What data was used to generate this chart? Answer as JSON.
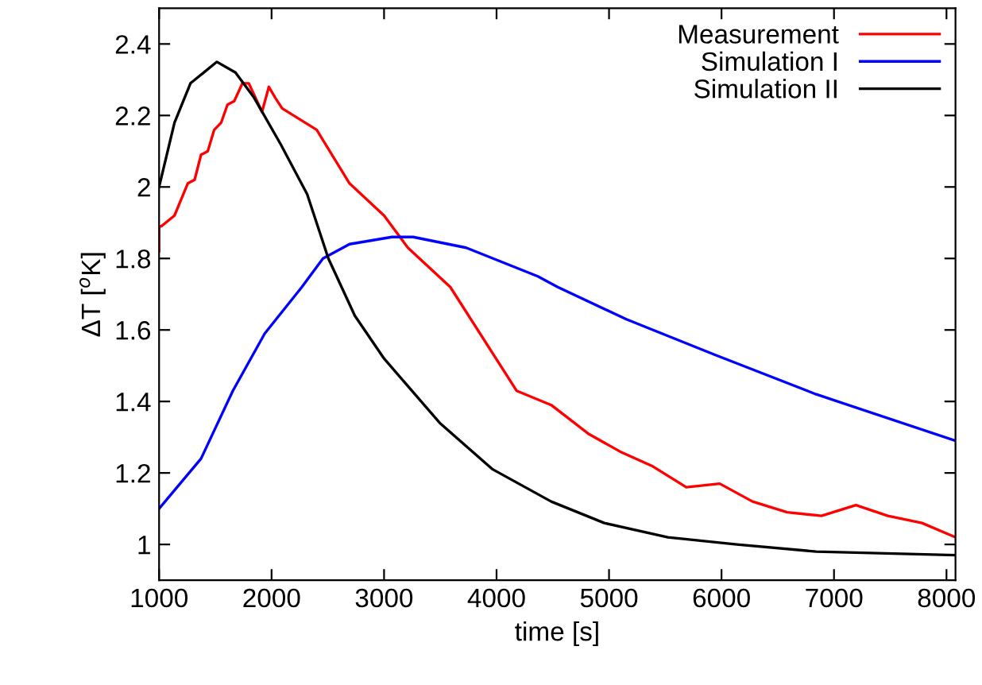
{
  "chart_data": {
    "type": "line",
    "xlabel": "time [s]",
    "ylabel": "ΔT [$^{o}$K]",
    "xlim": [
      1000,
      8080
    ],
    "ylim": [
      0.9,
      2.5
    ],
    "xticks": [
      1000,
      2000,
      3000,
      4000,
      5000,
      6000,
      7000,
      8000
    ],
    "yticks": [
      1,
      1.2,
      1.4,
      1.6,
      1.8,
      2,
      2.2,
      2.4
    ],
    "grid": false,
    "legend": "top right",
    "marker": "none",
    "line_style": "solid",
    "series": [
      {
        "name": "Measurement",
        "color": "#ff0000",
        "x": [
          1000,
          1000,
          1020,
          1137,
          1255,
          1316,
          1373,
          1433,
          1490,
          1552,
          1608,
          1668,
          1741,
          1797,
          1915,
          1976,
          2032,
          2094,
          2401,
          2693,
          3000,
          3212,
          3589,
          4178,
          4486,
          4815,
          5097,
          5380,
          5687,
          5984,
          6276,
          6583,
          6889,
          7195,
          7478,
          7782,
          8080
        ],
        "values": [
          1.82,
          1.89,
          1.89,
          1.92,
          2.01,
          2.02,
          2.09,
          2.1,
          2.16,
          2.18,
          2.23,
          2.24,
          2.29,
          2.29,
          2.21,
          2.28,
          2.25,
          2.22,
          2.16,
          2.01,
          1.92,
          1.83,
          1.72,
          1.43,
          1.39,
          1.31,
          1.26,
          1.22,
          1.16,
          1.17,
          1.12,
          1.09,
          1.08,
          1.11,
          1.08,
          1.06,
          1.02
        ]
      },
      {
        "name": "Simulation I",
        "color": "#0000ff",
        "x": [
          1000,
          1373,
          1656,
          1939,
          2269,
          2457,
          2693,
          3070,
          3259,
          3730,
          4367,
          4544,
          5154,
          5946,
          6842,
          8080
        ],
        "values": [
          1.1,
          1.24,
          1.43,
          1.59,
          1.72,
          1.8,
          1.84,
          1.86,
          1.86,
          1.83,
          1.75,
          1.72,
          1.63,
          1.53,
          1.42,
          1.29
        ]
      },
      {
        "name": "Simulation II",
        "color": "#000000",
        "x": [
          1000,
          1137,
          1279,
          1514,
          1679,
          1844,
          2080,
          2316,
          2505,
          2740,
          3000,
          3495,
          3966,
          4486,
          4957,
          5523,
          6135,
          6842,
          8080
        ],
        "values": [
          2.0,
          2.18,
          2.29,
          2.35,
          2.32,
          2.25,
          2.12,
          1.98,
          1.8,
          1.64,
          1.52,
          1.34,
          1.21,
          1.12,
          1.06,
          1.02,
          1.0,
          0.98,
          0.97
        ]
      }
    ]
  }
}
